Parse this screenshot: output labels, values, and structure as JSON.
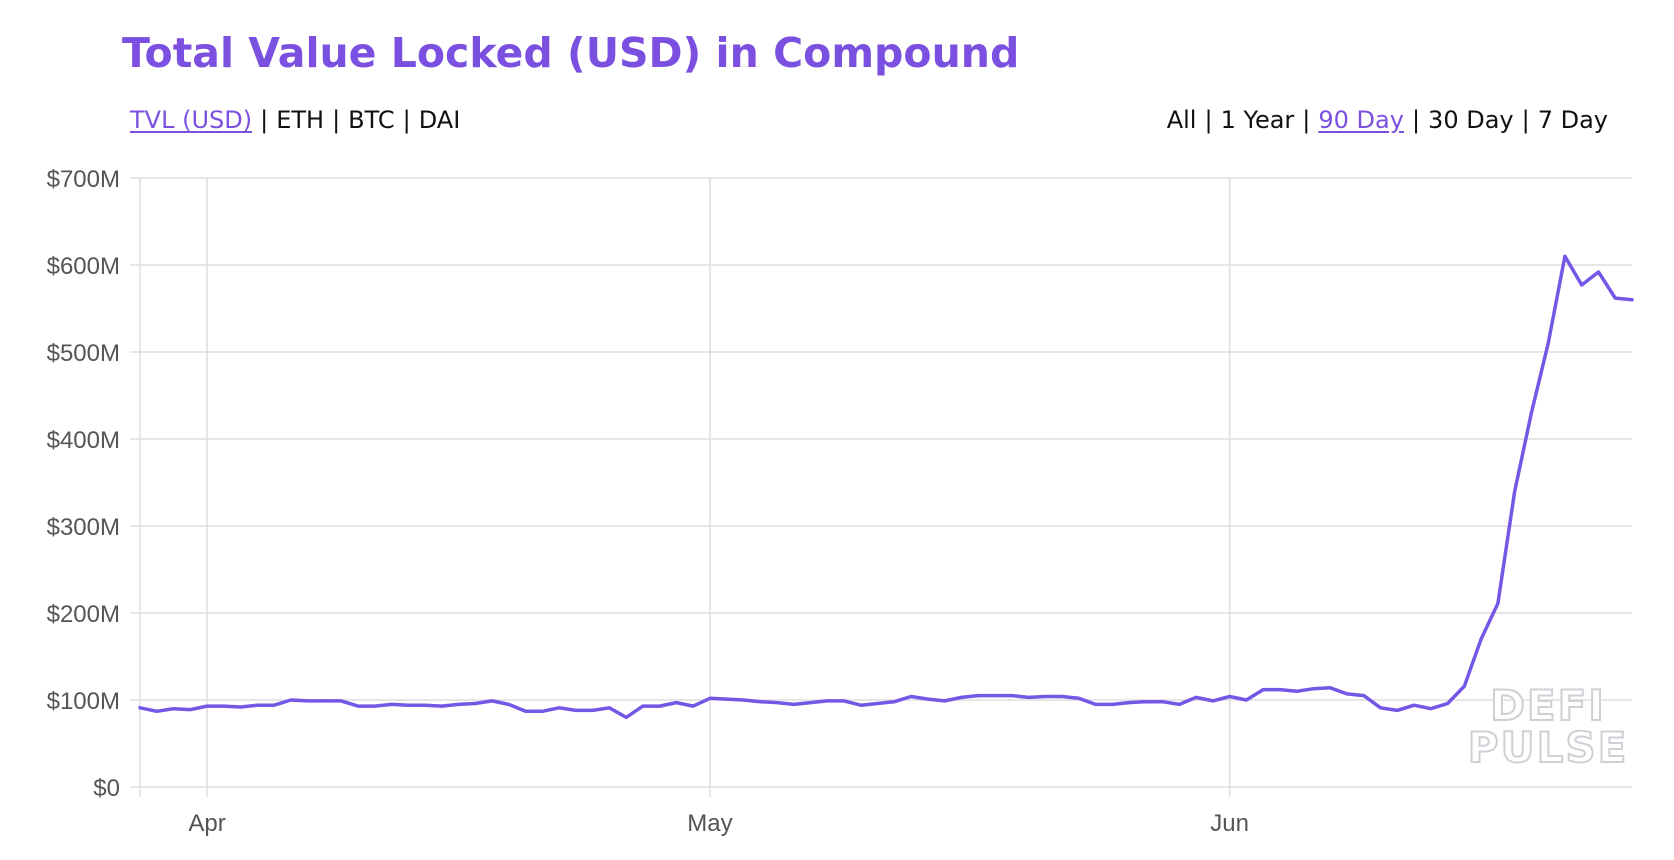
{
  "header": {
    "title": "Total Value Locked (USD) in Compound"
  },
  "metric_tabs": [
    {
      "label": "TVL (USD)",
      "active": true
    },
    {
      "label": "ETH",
      "active": false
    },
    {
      "label": "BTC",
      "active": false
    },
    {
      "label": "DAI",
      "active": false
    }
  ],
  "range_tabs": [
    {
      "label": "All",
      "active": false
    },
    {
      "label": "1 Year",
      "active": false
    },
    {
      "label": "90 Day",
      "active": true
    },
    {
      "label": "30 Day",
      "active": false
    },
    {
      "label": "7 Day",
      "active": false
    }
  ],
  "separator": "|",
  "watermark": [
    "DEFI",
    "PULSE"
  ],
  "colors": {
    "accent": "#7b50e0",
    "line": "#7557e6",
    "grid": "#dddddd",
    "axis_text": "#555555"
  },
  "chart_data": {
    "type": "line",
    "x_unit": "date",
    "x": [
      "2020-03-28",
      "2020-03-29",
      "2020-03-30",
      "2020-03-31",
      "2020-04-01",
      "2020-04-02",
      "2020-04-03",
      "2020-04-04",
      "2020-04-05",
      "2020-04-06",
      "2020-04-07",
      "2020-04-08",
      "2020-04-09",
      "2020-04-10",
      "2020-04-11",
      "2020-04-12",
      "2020-04-13",
      "2020-04-14",
      "2020-04-15",
      "2020-04-16",
      "2020-04-17",
      "2020-04-18",
      "2020-04-19",
      "2020-04-20",
      "2020-04-21",
      "2020-04-22",
      "2020-04-23",
      "2020-04-24",
      "2020-04-25",
      "2020-04-26",
      "2020-04-27",
      "2020-04-28",
      "2020-04-29",
      "2020-04-30",
      "2020-05-01",
      "2020-05-02",
      "2020-05-03",
      "2020-05-04",
      "2020-05-05",
      "2020-05-06",
      "2020-05-07",
      "2020-05-08",
      "2020-05-09",
      "2020-05-10",
      "2020-05-11",
      "2020-05-12",
      "2020-05-13",
      "2020-05-14",
      "2020-05-15",
      "2020-05-16",
      "2020-05-17",
      "2020-05-18",
      "2020-05-19",
      "2020-05-20",
      "2020-05-21",
      "2020-05-22",
      "2020-05-23",
      "2020-05-24",
      "2020-05-25",
      "2020-05-26",
      "2020-05-27",
      "2020-05-28",
      "2020-05-29",
      "2020-05-30",
      "2020-05-31",
      "2020-06-01",
      "2020-06-02",
      "2020-06-03",
      "2020-06-04",
      "2020-06-05",
      "2020-06-06",
      "2020-06-07",
      "2020-06-08",
      "2020-06-09",
      "2020-06-10",
      "2020-06-11",
      "2020-06-12",
      "2020-06-13",
      "2020-06-14",
      "2020-06-15",
      "2020-06-16",
      "2020-06-17",
      "2020-06-18",
      "2020-06-19",
      "2020-06-20",
      "2020-06-21",
      "2020-06-22",
      "2020-06-23",
      "2020-06-24",
      "2020-06-25"
    ],
    "series": [
      {
        "values": [
          91,
          87,
          90,
          89,
          93,
          93,
          92,
          94,
          94,
          100,
          99,
          99,
          99,
          93,
          93,
          95,
          94,
          94,
          93,
          95,
          96,
          99,
          95,
          87,
          87,
          91,
          88,
          88,
          91,
          80,
          93,
          93,
          97,
          93,
          102,
          101,
          100,
          98,
          97,
          95,
          97,
          99,
          99,
          94,
          96,
          98,
          104,
          101,
          99,
          103,
          105,
          105,
          105,
          103,
          104,
          104,
          102,
          95,
          95,
          97,
          98,
          98,
          95,
          103,
          99,
          104,
          100,
          112,
          112,
          110,
          113,
          114,
          107,
          105,
          91,
          88,
          94,
          90,
          96,
          116,
          170,
          211,
          340,
          430,
          510,
          610,
          577,
          592,
          562,
          560
        ]
      }
    ],
    "ylim": [
      0,
      700
    ],
    "yticks": [
      0,
      100,
      200,
      300,
      400,
      500,
      600,
      700
    ],
    "ytick_labels": [
      "$0",
      "$100M",
      "$200M",
      "$300M",
      "$400M",
      "$500M",
      "$600M",
      "$700M"
    ],
    "xticks": [
      "2020-04-01",
      "2020-05-01",
      "2020-06-01"
    ],
    "xtick_labels": [
      "Apr",
      "May",
      "Jun"
    ],
    "grid": true,
    "legend": "none"
  }
}
